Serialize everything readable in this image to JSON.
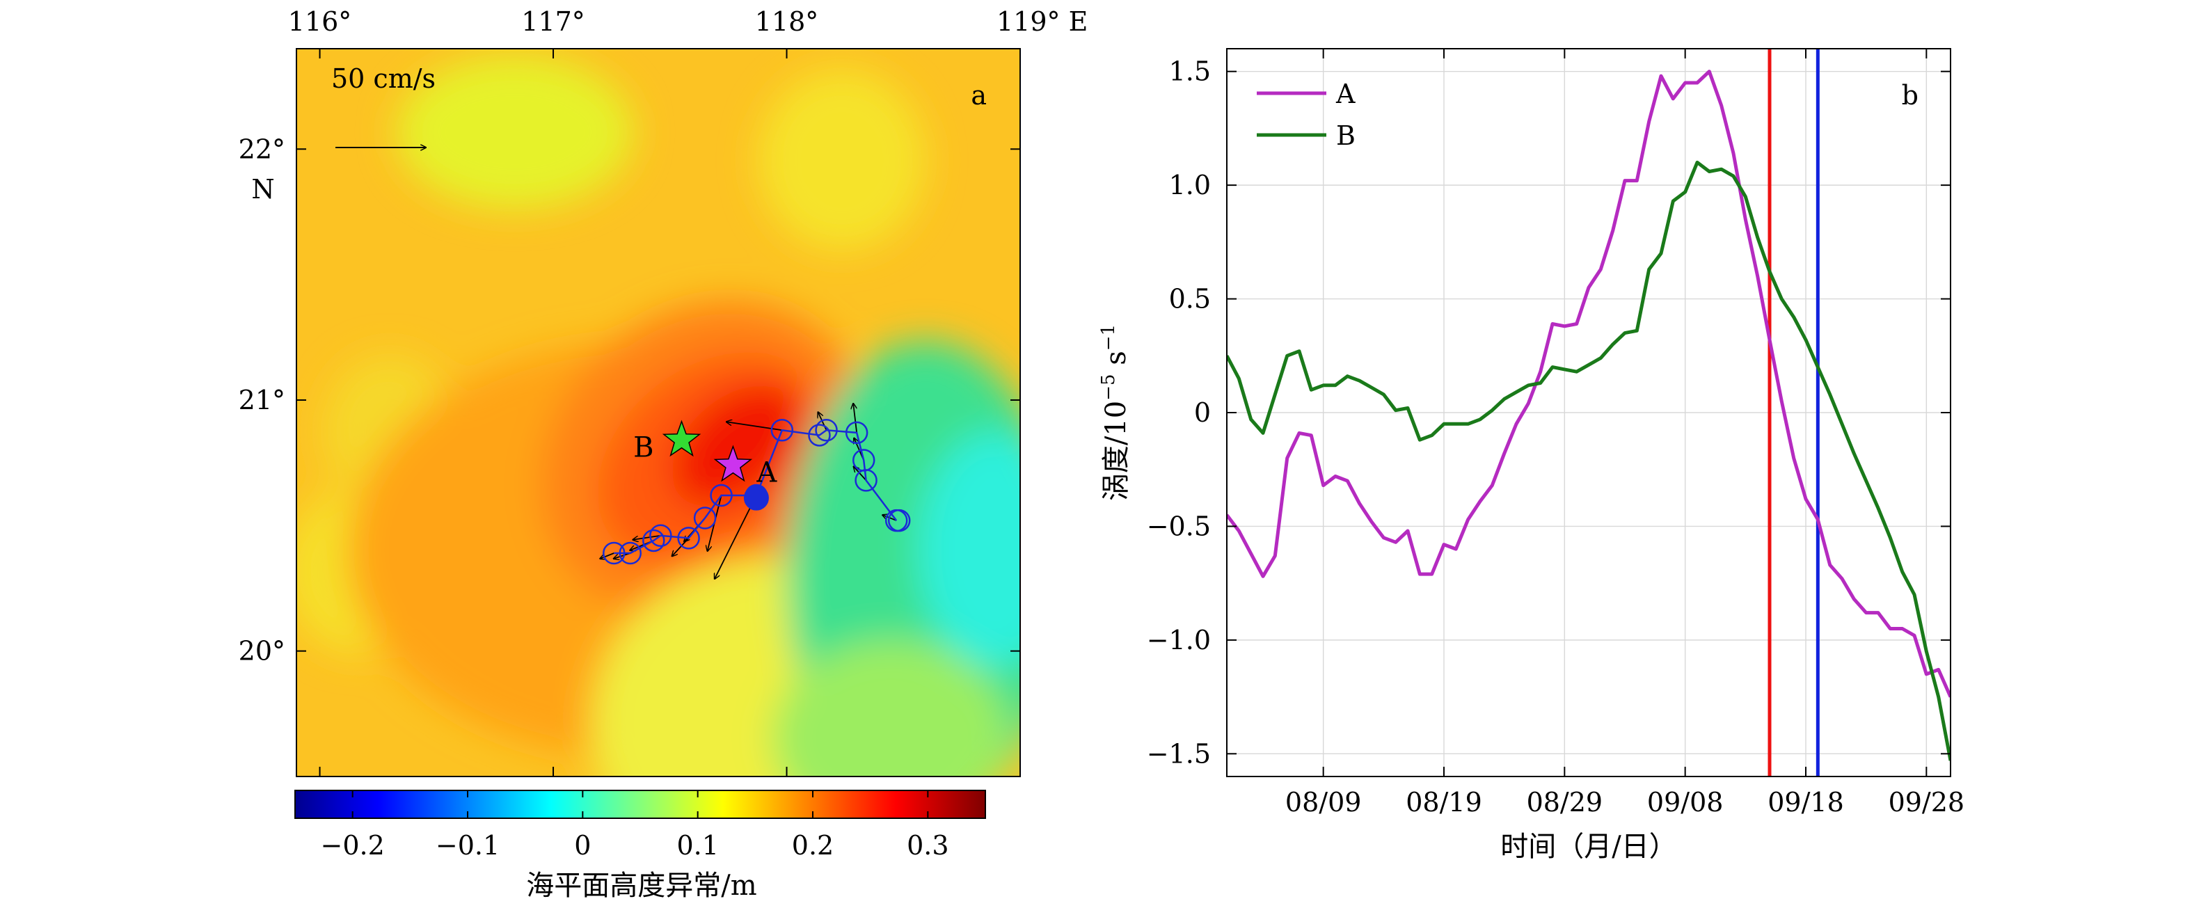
{
  "panel_a": {
    "label": "a",
    "lon_ticks": [
      "116°",
      "117°",
      "118°",
      "119° E"
    ],
    "lat_ticks": [
      "22°",
      "21°",
      "20°"
    ],
    "lat_unit": "N",
    "vector_scale_label": "50 cm/s",
    "point_labels": {
      "A": "A",
      "B": "B"
    },
    "colorbar_ticks": [
      "−0.2",
      "−0.1",
      "0",
      "0.1",
      "0.2",
      "0.3"
    ],
    "colorbar_label": "海平面高度异常/m",
    "colors": {
      "star_a": "#cc33ee",
      "star_b": "#33dd33",
      "track": "#1a2bd6"
    }
  },
  "panel_b": {
    "label": "b",
    "y_ticks": [
      "1.5",
      "1.0",
      "0.5",
      "0",
      "−0.5",
      "−1.0",
      "−1.5"
    ],
    "x_ticks": [
      "08/09",
      "08/19",
      "08/29",
      "09/08",
      "09/18",
      "09/28"
    ],
    "ylabel_text": "涡度/10",
    "ylabel_exp1": "−5",
    "ylabel_unit": " s",
    "ylabel_exp2": "−1",
    "xlabel": "时间（月/日）"
  },
  "chart_data": [
    {
      "type": "heatmap",
      "panel": "a",
      "colorbar_label": "海平面高度异常/m",
      "xlim": [
        115.9,
        119.0
      ],
      "ylim": [
        19.5,
        22.4
      ],
      "clim": [
        -0.25,
        0.35
      ],
      "colormap": "jet",
      "annotations": [
        {
          "name": "A",
          "lon": 117.77,
          "lat": 20.74
        },
        {
          "name": "B",
          "lon": 117.55,
          "lat": 20.84
        }
      ],
      "track": [
        {
          "lon": 118.47,
          "lat": 20.52
        },
        {
          "lon": 118.34,
          "lat": 20.68
        },
        {
          "lon": 118.33,
          "lat": 20.76
        },
        {
          "lon": 118.3,
          "lat": 20.87
        },
        {
          "lon": 118.17,
          "lat": 20.88
        },
        {
          "lon": 118.14,
          "lat": 20.86
        },
        {
          "lon": 117.98,
          "lat": 20.88
        },
        {
          "lon": 117.87,
          "lat": 20.62
        },
        {
          "lon": 117.72,
          "lat": 20.62
        },
        {
          "lon": 117.65,
          "lat": 20.53
        },
        {
          "lon": 117.58,
          "lat": 20.45
        },
        {
          "lon": 117.46,
          "lat": 20.46
        },
        {
          "lon": 117.43,
          "lat": 20.44
        },
        {
          "lon": 117.33,
          "lat": 20.39
        },
        {
          "lon": 117.26,
          "lat": 20.39
        }
      ],
      "track_end": {
        "lon": 117.87,
        "lat": 20.61
      }
    },
    {
      "type": "line",
      "panel": "b",
      "x_start": "08/01",
      "x_end": "09/30",
      "xtick_labels": [
        "08/09",
        "08/19",
        "08/29",
        "09/08",
        "09/18",
        "09/28"
      ],
      "ylim": [
        -1.6,
        1.6
      ],
      "grid": true,
      "legend": "top-left",
      "vlines": [
        {
          "date": "09/15",
          "color": "#ee1111"
        },
        {
          "date": "09/19",
          "color": "#1122dd"
        }
      ],
      "series": [
        {
          "name": "A",
          "color": "#b52bc0",
          "points": [
            [
              "08/01",
              -0.45
            ],
            [
              "08/02",
              -0.52
            ],
            [
              "08/03",
              -0.62
            ],
            [
              "08/04",
              -0.72
            ],
            [
              "08/05",
              -0.63
            ],
            [
              "08/06",
              -0.2
            ],
            [
              "08/07",
              -0.09
            ],
            [
              "08/08",
              -0.1
            ],
            [
              "08/09",
              -0.32
            ],
            [
              "08/10",
              -0.28
            ],
            [
              "08/11",
              -0.3
            ],
            [
              "08/12",
              -0.4
            ],
            [
              "08/13",
              -0.48
            ],
            [
              "08/14",
              -0.55
            ],
            [
              "08/15",
              -0.57
            ],
            [
              "08/16",
              -0.52
            ],
            [
              "08/17",
              -0.71
            ],
            [
              "08/18",
              -0.71
            ],
            [
              "08/19",
              -0.58
            ],
            [
              "08/20",
              -0.6
            ],
            [
              "08/21",
              -0.47
            ],
            [
              "08/22",
              -0.39
            ],
            [
              "08/23",
              -0.32
            ],
            [
              "08/24",
              -0.18
            ],
            [
              "08/25",
              -0.05
            ],
            [
              "08/26",
              0.04
            ],
            [
              "08/27",
              0.18
            ],
            [
              "08/28",
              0.39
            ],
            [
              "08/29",
              0.38
            ],
            [
              "08/30",
              0.39
            ],
            [
              "08/31",
              0.55
            ],
            [
              "09/01",
              0.63
            ],
            [
              "09/02",
              0.8
            ],
            [
              "09/03",
              1.02
            ],
            [
              "09/04",
              1.02
            ],
            [
              "09/05",
              1.28
            ],
            [
              "09/06",
              1.48
            ],
            [
              "09/07",
              1.38
            ],
            [
              "09/08",
              1.45
            ],
            [
              "09/09",
              1.45
            ],
            [
              "09/10",
              1.5
            ],
            [
              "09/11",
              1.35
            ],
            [
              "09/12",
              1.14
            ],
            [
              "09/13",
              0.85
            ],
            [
              "09/14",
              0.6
            ],
            [
              "09/15",
              0.32
            ],
            [
              "09/16",
              0.05
            ],
            [
              "09/17",
              -0.2
            ],
            [
              "09/18",
              -0.38
            ],
            [
              "09/19",
              -0.47
            ],
            [
              "09/20",
              -0.67
            ],
            [
              "09/21",
              -0.73
            ],
            [
              "09/22",
              -0.82
            ],
            [
              "09/23",
              -0.88
            ],
            [
              "09/24",
              -0.88
            ],
            [
              "09/25",
              -0.95
            ],
            [
              "09/26",
              -0.95
            ],
            [
              "09/27",
              -0.98
            ],
            [
              "09/28",
              -1.15
            ],
            [
              "09/29",
              -1.13
            ],
            [
              "09/30",
              -1.25
            ]
          ]
        },
        {
          "name": "B",
          "color": "#1a7a1a",
          "points": [
            [
              "08/01",
              0.25
            ],
            [
              "08/02",
              0.15
            ],
            [
              "08/03",
              -0.03
            ],
            [
              "08/04",
              -0.09
            ],
            [
              "08/05",
              0.08
            ],
            [
              "08/06",
              0.25
            ],
            [
              "08/07",
              0.27
            ],
            [
              "08/08",
              0.1
            ],
            [
              "08/09",
              0.12
            ],
            [
              "08/10",
              0.12
            ],
            [
              "08/11",
              0.16
            ],
            [
              "08/12",
              0.14
            ],
            [
              "08/13",
              0.11
            ],
            [
              "08/14",
              0.08
            ],
            [
              "08/15",
              0.01
            ],
            [
              "08/16",
              0.02
            ],
            [
              "08/17",
              -0.12
            ],
            [
              "08/18",
              -0.1
            ],
            [
              "08/19",
              -0.05
            ],
            [
              "08/20",
              -0.05
            ],
            [
              "08/21",
              -0.05
            ],
            [
              "08/22",
              -0.03
            ],
            [
              "08/23",
              0.01
            ],
            [
              "08/24",
              0.06
            ],
            [
              "08/25",
              0.09
            ],
            [
              "08/26",
              0.12
            ],
            [
              "08/27",
              0.13
            ],
            [
              "08/28",
              0.2
            ],
            [
              "08/29",
              0.19
            ],
            [
              "08/30",
              0.18
            ],
            [
              "08/31",
              0.21
            ],
            [
              "09/01",
              0.24
            ],
            [
              "09/02",
              0.3
            ],
            [
              "09/03",
              0.35
            ],
            [
              "09/04",
              0.36
            ],
            [
              "09/05",
              0.63
            ],
            [
              "09/06",
              0.7
            ],
            [
              "09/07",
              0.93
            ],
            [
              "09/08",
              0.97
            ],
            [
              "09/09",
              1.1
            ],
            [
              "09/10",
              1.06
            ],
            [
              "09/11",
              1.07
            ],
            [
              "09/12",
              1.04
            ],
            [
              "09/13",
              0.95
            ],
            [
              "09/14",
              0.77
            ],
            [
              "09/15",
              0.62
            ],
            [
              "09/16",
              0.5
            ],
            [
              "09/17",
              0.42
            ],
            [
              "09/18",
              0.32
            ],
            [
              "09/19",
              0.2
            ],
            [
              "09/20",
              0.08
            ],
            [
              "09/21",
              -0.05
            ],
            [
              "09/22",
              -0.18
            ],
            [
              "09/23",
              -0.3
            ],
            [
              "09/24",
              -0.42
            ],
            [
              "09/25",
              -0.55
            ],
            [
              "09/26",
              -0.7
            ],
            [
              "09/27",
              -0.8
            ],
            [
              "09/28",
              -1.05
            ],
            [
              "09/29",
              -1.25
            ],
            [
              "09/30",
              -1.53
            ]
          ]
        }
      ]
    }
  ]
}
